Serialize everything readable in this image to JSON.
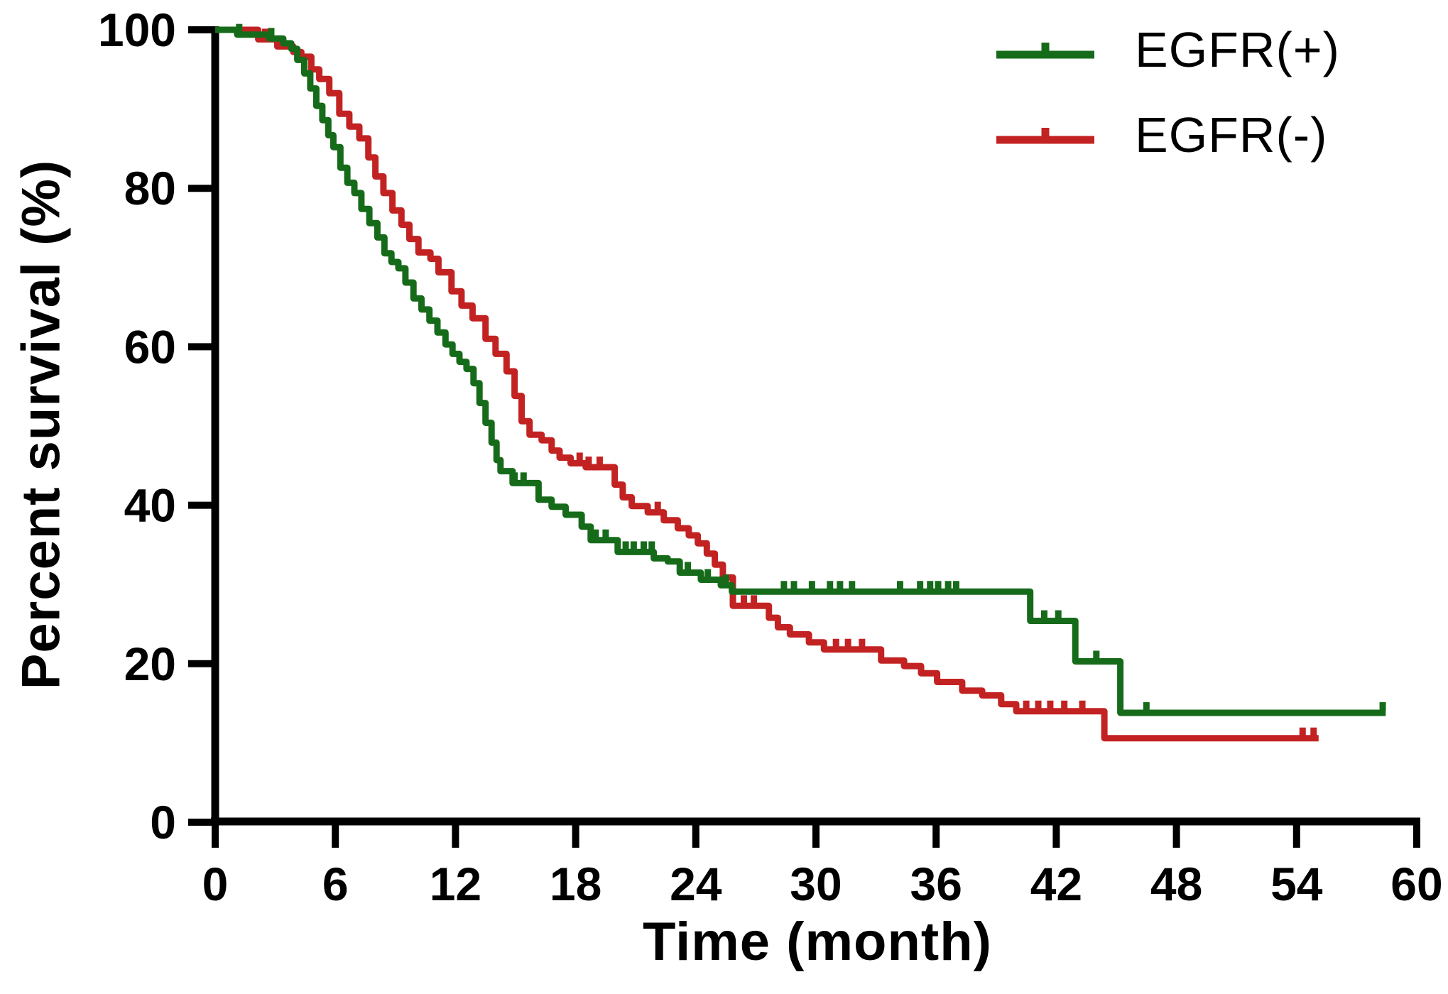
{
  "chart_data": {
    "type": "line",
    "subtype": "kaplan-meier-step-curves",
    "title": "",
    "xlabel": "Time (month)",
    "ylabel": "Percent survival (%)",
    "xlim": [
      0,
      60
    ],
    "ylim": [
      0,
      100
    ],
    "x_ticks": [
      0,
      6,
      12,
      18,
      24,
      30,
      36,
      42,
      48,
      54,
      60
    ],
    "y_ticks": [
      0,
      20,
      40,
      60,
      80,
      100
    ],
    "grid": false,
    "background_color": "#ffffff",
    "axis_color": "#000000",
    "legend_position": "top-right",
    "series": [
      {
        "name": "EGFR(+)",
        "color": "#166b1a",
        "steps": [
          [
            0,
            100
          ],
          [
            1.1,
            99.4
          ],
          [
            2.7,
            98.9
          ],
          [
            3.4,
            98.3
          ],
          [
            3.8,
            97.6
          ],
          [
            4.1,
            96.2
          ],
          [
            4.45,
            94.5
          ],
          [
            4.75,
            92.6
          ],
          [
            5.05,
            90.4
          ],
          [
            5.35,
            88.6
          ],
          [
            5.65,
            86.7
          ],
          [
            5.9,
            85.2
          ],
          [
            6.25,
            82.6
          ],
          [
            6.6,
            80.7
          ],
          [
            6.95,
            79.4
          ],
          [
            7.3,
            77.4
          ],
          [
            7.7,
            75.6
          ],
          [
            8.1,
            73.8
          ],
          [
            8.45,
            71.8
          ],
          [
            8.8,
            70.7
          ],
          [
            9.15,
            69.9
          ],
          [
            9.5,
            68.1
          ],
          [
            9.9,
            66.1
          ],
          [
            10.3,
            64.7
          ],
          [
            10.7,
            63.3
          ],
          [
            11.1,
            61.8
          ],
          [
            11.5,
            60.3
          ],
          [
            11.85,
            59.1
          ],
          [
            12.2,
            58.1
          ],
          [
            12.55,
            57.2
          ],
          [
            12.9,
            55.4
          ],
          [
            13.2,
            52.9
          ],
          [
            13.5,
            50.4
          ],
          [
            13.8,
            47.9
          ],
          [
            14.05,
            45.7
          ],
          [
            14.25,
            44.3
          ],
          [
            14.85,
            42.8
          ],
          [
            16.15,
            40.7
          ],
          [
            16.8,
            39.8
          ],
          [
            17.5,
            38.8
          ],
          [
            18.3,
            37.3
          ],
          [
            18.75,
            35.6
          ],
          [
            20.1,
            34.1
          ],
          [
            21.9,
            33.3
          ],
          [
            22.6,
            32.9
          ],
          [
            23.2,
            31.5
          ],
          [
            24.25,
            30.6
          ],
          [
            25.25,
            29.9
          ],
          [
            25.8,
            29.1
          ],
          [
            40.7,
            25.4
          ],
          [
            42.95,
            20.3
          ],
          [
            45.2,
            13.8
          ],
          [
            58.45,
            13.8
          ]
        ],
        "censor_marks": [
          1.2,
          2.8,
          14.95,
          15.4,
          19.0,
          19.5,
          20.5,
          20.9,
          21.4,
          21.8,
          23.6,
          24.6,
          25.5,
          28.4,
          28.9,
          29.8,
          30.7,
          31.2,
          31.8,
          34.2,
          35.2,
          35.7,
          36.1,
          36.6,
          37.0,
          41.4,
          42.1,
          44.0,
          46.5,
          58.3
        ]
      },
      {
        "name": "EGFR(-)",
        "color": "#c32222",
        "steps": [
          [
            0,
            100
          ],
          [
            2.15,
            98.8
          ],
          [
            3.1,
            97.9
          ],
          [
            3.9,
            97.2
          ],
          [
            4.3,
            96.6
          ],
          [
            4.8,
            95.0
          ],
          [
            5.2,
            93.8
          ],
          [
            5.7,
            92.0
          ],
          [
            6.2,
            89.4
          ],
          [
            6.7,
            87.8
          ],
          [
            7.2,
            86.3
          ],
          [
            7.65,
            83.9
          ],
          [
            8.0,
            81.5
          ],
          [
            8.4,
            79.4
          ],
          [
            8.85,
            77.2
          ],
          [
            9.3,
            75.4
          ],
          [
            9.7,
            73.6
          ],
          [
            10.15,
            71.9
          ],
          [
            10.75,
            71.1
          ],
          [
            11.15,
            69.4
          ],
          [
            11.8,
            67.0
          ],
          [
            12.3,
            65.2
          ],
          [
            12.85,
            63.6
          ],
          [
            13.5,
            61.0
          ],
          [
            14.0,
            59.1
          ],
          [
            14.55,
            56.9
          ],
          [
            14.95,
            53.8
          ],
          [
            15.3,
            50.6
          ],
          [
            15.7,
            48.9
          ],
          [
            16.3,
            48.2
          ],
          [
            16.8,
            46.9
          ],
          [
            17.2,
            46.0
          ],
          [
            17.75,
            45.3
          ],
          [
            18.5,
            44.8
          ],
          [
            19.95,
            42.6
          ],
          [
            20.35,
            41.0
          ],
          [
            20.8,
            39.9
          ],
          [
            21.6,
            39.1
          ],
          [
            22.4,
            38.1
          ],
          [
            23.1,
            37.1
          ],
          [
            23.65,
            36.2
          ],
          [
            24.1,
            35.2
          ],
          [
            24.55,
            33.9
          ],
          [
            24.95,
            32.5
          ],
          [
            25.35,
            30.9
          ],
          [
            25.85,
            27.3
          ],
          [
            27.65,
            25.8
          ],
          [
            28.1,
            24.6
          ],
          [
            28.7,
            23.7
          ],
          [
            29.65,
            22.7
          ],
          [
            30.4,
            21.8
          ],
          [
            33.25,
            20.4
          ],
          [
            34.4,
            19.7
          ],
          [
            35.25,
            18.8
          ],
          [
            36.05,
            17.7
          ],
          [
            37.3,
            16.6
          ],
          [
            38.3,
            16.0
          ],
          [
            39.25,
            14.9
          ],
          [
            40.0,
            14.0
          ],
          [
            44.4,
            10.6
          ],
          [
            55.1,
            10.6
          ]
        ],
        "censor_marks": [
          2.5,
          18.2,
          18.65,
          19.2,
          22.1,
          26.4,
          26.9,
          31.0,
          31.6,
          32.3,
          40.5,
          41.1,
          41.7,
          42.4,
          43.3,
          54.3,
          54.85
        ]
      }
    ]
  },
  "legend": {
    "items": [
      {
        "label": "EGFR(+)",
        "color": "#166b1a"
      },
      {
        "label": "EGFR(-)",
        "color": "#c32222"
      }
    ]
  }
}
